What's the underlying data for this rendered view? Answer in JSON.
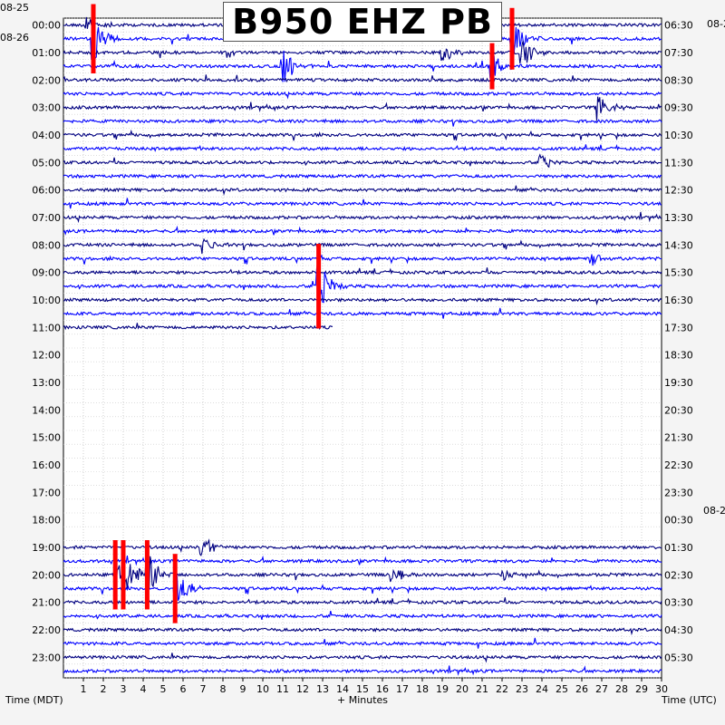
{
  "chart_data": {
    "type": "line",
    "title": "B950 EHZ PB",
    "xlabel": "+ Minutes",
    "left_axis_label": "Time (MDT)",
    "right_axis_label": "Time (UTC)",
    "xlim": [
      0,
      30
    ],
    "x_ticks": [
      1,
      2,
      3,
      4,
      5,
      6,
      7,
      8,
      9,
      10,
      11,
      12,
      13,
      14,
      15,
      16,
      17,
      18,
      19,
      20,
      21,
      22,
      23,
      24,
      25,
      26,
      27,
      28,
      29,
      30
    ],
    "date_labels_left": [
      "08-25",
      "08-26"
    ],
    "date_labels_right": [
      "08-2",
      "08-2"
    ],
    "hours_left": [
      "00:00",
      "01:00",
      "02:00",
      "03:00",
      "04:00",
      "05:00",
      "06:00",
      "07:00",
      "08:00",
      "09:00",
      "10:00",
      "11:00",
      "12:00",
      "13:00",
      "14:00",
      "15:00",
      "16:00",
      "17:00",
      "18:00",
      "19:00",
      "20:00",
      "21:00",
      "22:00",
      "23:00"
    ],
    "hours_right": [
      "06:30",
      "07:30",
      "08:30",
      "09:30",
      "10:30",
      "11:30",
      "12:30",
      "13:30",
      "14:30",
      "15:30",
      "16:30",
      "17:30",
      "18:30",
      "19:30",
      "20:30",
      "21:30",
      "22:30",
      "23:30",
      "00:30",
      "01:30",
      "02:30",
      "03:30",
      "04:30",
      "05:30"
    ],
    "trace_colors": [
      "#000080",
      "#0000ff"
    ],
    "clip_color": "#ff0000",
    "trace_rows": {
      "interval_minutes": 30,
      "active_ranges": [
        [
          0,
          22
        ],
        [
          38,
          48
        ]
      ],
      "last_partial_row": 22,
      "last_partial_end_minute": 13.5
    },
    "events": [
      {
        "row": 1,
        "minute": 1.5,
        "amp": 1.8,
        "clipped": true
      },
      {
        "row": 0,
        "minute": 1.2,
        "amp": 0.6,
        "clipped": false
      },
      {
        "row": 3,
        "minute": 11.0,
        "amp": 1.5,
        "clipped": false
      },
      {
        "row": 2,
        "minute": 19.0,
        "amp": 0.8,
        "clipped": false
      },
      {
        "row": 3,
        "minute": 21.5,
        "amp": 1.2,
        "clipped": true
      },
      {
        "row": 1,
        "minute": 22.5,
        "amp": 1.6,
        "clipped": true
      },
      {
        "row": 2,
        "minute": 23.0,
        "amp": 1.2,
        "clipped": false
      },
      {
        "row": 6,
        "minute": 26.8,
        "amp": 1.2,
        "clipped": false
      },
      {
        "row": 10,
        "minute": 24.0,
        "amp": 0.6,
        "clipped": false
      },
      {
        "row": 16,
        "minute": 7.0,
        "amp": 0.8,
        "clipped": false
      },
      {
        "row": 19,
        "minute": 12.8,
        "amp": 2.2,
        "clipped": true
      },
      {
        "row": 17,
        "minute": 26.5,
        "amp": 0.6,
        "clipped": false
      },
      {
        "row": 40,
        "minute": 2.6,
        "amp": 1.8,
        "clipped": true
      },
      {
        "row": 40,
        "minute": 3.0,
        "amp": 1.8,
        "clipped": true
      },
      {
        "row": 40,
        "minute": 4.2,
        "amp": 1.8,
        "clipped": true
      },
      {
        "row": 41,
        "minute": 5.6,
        "amp": 1.8,
        "clipped": true
      },
      {
        "row": 38,
        "minute": 6.9,
        "amp": 1.2,
        "clipped": false
      },
      {
        "row": 40,
        "minute": 16.5,
        "amp": 0.8,
        "clipped": false
      },
      {
        "row": 40,
        "minute": 22.0,
        "amp": 0.5,
        "clipped": false
      }
    ]
  }
}
